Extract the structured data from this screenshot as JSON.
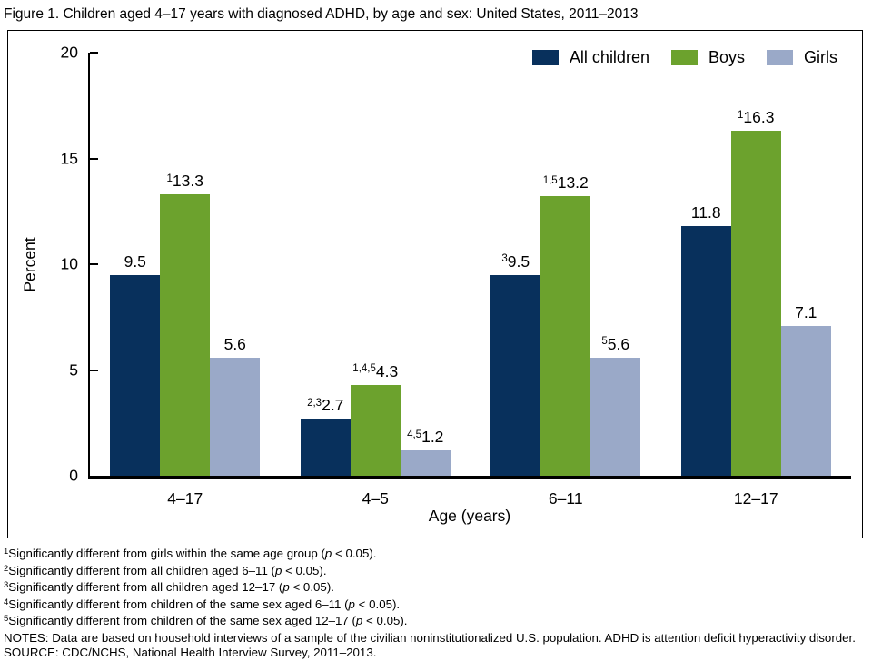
{
  "title": "Figure 1. Children aged 4–17 years with diagnosed ADHD, by age and sex: United States, 2011–2013",
  "chart_data": {
    "type": "bar",
    "title": "Children aged 4–17 years with diagnosed ADHD, by age and sex: United States, 2011–2013",
    "categories": [
      "4–17",
      "4–5",
      "6–11",
      "12–17"
    ],
    "series": [
      {
        "name": "All children",
        "color": "#08305c",
        "points": [
          {
            "value": 9.5,
            "label": "9.5",
            "sup": ""
          },
          {
            "value": 2.7,
            "label": "2.7",
            "sup": "2,3"
          },
          {
            "value": 9.5,
            "label": "9.5",
            "sup": "3"
          },
          {
            "value": 11.8,
            "label": "11.8",
            "sup": ""
          }
        ]
      },
      {
        "name": "Boys",
        "color": "#6ca22d",
        "points": [
          {
            "value": 13.3,
            "label": "13.3",
            "sup": "1"
          },
          {
            "value": 4.3,
            "label": "4.3",
            "sup": "1,4,5"
          },
          {
            "value": 13.2,
            "label": "13.2",
            "sup": "1,5"
          },
          {
            "value": 16.3,
            "label": "16.3",
            "sup": "1"
          }
        ]
      },
      {
        "name": "Girls",
        "color": "#9aa9c8",
        "points": [
          {
            "value": 5.6,
            "label": "5.6",
            "sup": ""
          },
          {
            "value": 1.2,
            "label": "1.2",
            "sup": "4,5"
          },
          {
            "value": 5.6,
            "label": "5.6",
            "sup": "5"
          },
          {
            "value": 7.1,
            "label": "7.1",
            "sup": ""
          }
        ]
      }
    ],
    "xlabel": "Age (years)",
    "ylabel": "Percent",
    "ylim": [
      0,
      20
    ],
    "yticks": [
      0,
      5,
      10,
      15,
      20
    ],
    "grid": false,
    "legend_position": "top-right"
  },
  "footnotes": [
    {
      "sup": "1",
      "before": "Significantly different from girls within the same age group (",
      "p": "p",
      "after": " < 0.05)."
    },
    {
      "sup": "2",
      "before": "Significantly different from all children aged 6–11 (",
      "p": "p",
      "after": " < 0.05)."
    },
    {
      "sup": "3",
      "before": "Significantly different from all children aged 12–17 (",
      "p": "p",
      "after": " < 0.05)."
    },
    {
      "sup": "4",
      "before": "Significantly different from children of the same sex aged 6–11 (",
      "p": "p",
      "after": " < 0.05)."
    },
    {
      "sup": "5",
      "before": "Significantly different from children of the same sex aged 12–17 (",
      "p": "p",
      "after": " < 0.05)."
    }
  ],
  "notes": "NOTES: Data are based on household interviews of a sample of the civilian noninstitutionalized U.S. population. ADHD is attention deficit hyperactivity disorder.",
  "source": "SOURCE: CDC/NCHS, National Health Interview Survey, 2011–2013."
}
